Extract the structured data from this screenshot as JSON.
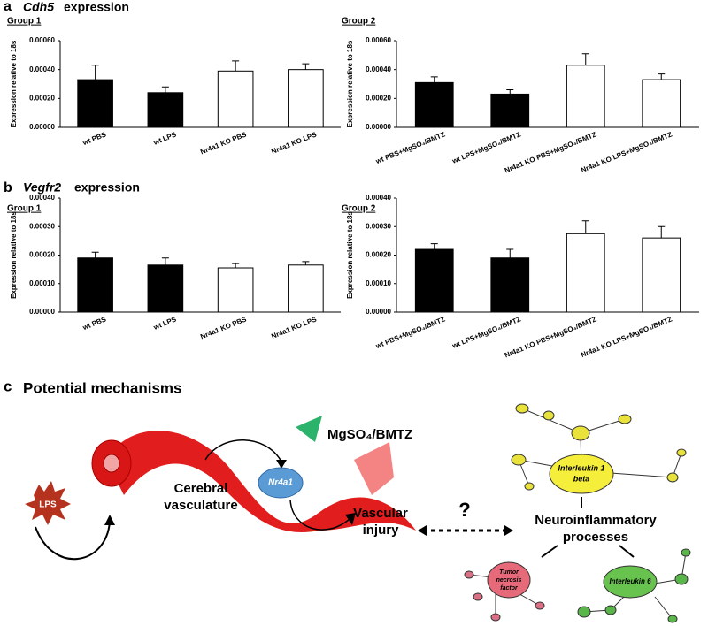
{
  "panels": [
    {
      "letter": "a",
      "gene": "Cdh5",
      "suffix": "expression"
    },
    {
      "letter": "b",
      "gene": "Vegfr2",
      "suffix": "expression"
    },
    {
      "letter": "c",
      "title": "Potential mechanisms"
    }
  ],
  "chart_data": [
    {
      "type": "bar",
      "subtitle": "Group 1",
      "ylabel": "Expression relative to 18s",
      "categories": [
        "wt PBS",
        "wt LPS",
        "Nr4a1 KO PBS",
        "Nr4a1 KO LPS"
      ],
      "values": [
        0.00033,
        0.00024,
        0.00039,
        0.0004
      ],
      "errors": [
        0.0001,
        4e-05,
        7e-05,
        4e-05
      ],
      "colors": [
        "#000000",
        "#000000",
        "#ffffff",
        "#ffffff"
      ],
      "ylim": [
        0,
        0.0006
      ],
      "yticks": [
        {
          "value": 0,
          "label": "0.00000"
        },
        {
          "value": 0.0002,
          "label": "0.00020"
        },
        {
          "value": 0.0004,
          "label": "0.00040"
        },
        {
          "value": 0.0006,
          "label": "0.00060"
        }
      ]
    },
    {
      "type": "bar",
      "subtitle": "Group 2",
      "ylabel": "Expression relative to 18s",
      "categories": [
        "wt PBS+MgSO₄/BMTZ",
        "wt LPS+MgSO₄/BMTZ",
        "Nr4a1 KO PBS+MgSO₄/BMTZ",
        "Nr4a1 KO LPS+MgSO₄/BMTZ"
      ],
      "values": [
        0.00031,
        0.00023,
        0.00043,
        0.00033
      ],
      "errors": [
        4e-05,
        3e-05,
        8e-05,
        4e-05
      ],
      "colors": [
        "#000000",
        "#000000",
        "#ffffff",
        "#ffffff"
      ],
      "ylim": [
        0,
        0.0006
      ],
      "yticks": [
        {
          "value": 0,
          "label": "0.00000"
        },
        {
          "value": 0.0002,
          "label": "0.00020"
        },
        {
          "value": 0.0004,
          "label": "0.00040"
        },
        {
          "value": 0.0006,
          "label": "0.00060"
        }
      ]
    },
    {
      "type": "bar",
      "subtitle": "Group 1",
      "ylabel": "Expression relative to 18s",
      "categories": [
        "wt PBS",
        "wt LPS",
        "Nr4a1 KO PBS",
        "Nr4a1 KO LPS"
      ],
      "values": [
        0.00019,
        0.000165,
        0.000155,
        0.000165
      ],
      "errors": [
        2e-05,
        2.5e-05,
        1.5e-05,
        1.2e-05
      ],
      "colors": [
        "#000000",
        "#000000",
        "#ffffff",
        "#ffffff"
      ],
      "ylim": [
        0,
        0.0004
      ],
      "yticks": [
        {
          "value": 0,
          "label": "0.00000"
        },
        {
          "value": 0.0001,
          "label": "0.00010"
        },
        {
          "value": 0.0002,
          "label": "0.00020"
        },
        {
          "value": 0.0003,
          "label": "0.00030"
        },
        {
          "value": 0.0004,
          "label": "0.00040"
        }
      ]
    },
    {
      "type": "bar",
      "subtitle": "Group 2",
      "ylabel": "Expression relative to 18s",
      "categories": [
        "wt PBS+MgSO₄/BMTZ",
        "wt LPS+MgSO₄/BMTZ",
        "Nr4a1 KO PBS+MgSO₄/BMTZ",
        "Nr4a1 KO LPS+MgSO₄/BMTZ"
      ],
      "values": [
        0.00022,
        0.00019,
        0.000275,
        0.00026
      ],
      "errors": [
        2e-05,
        3e-05,
        4.5e-05,
        4e-05
      ],
      "colors": [
        "#000000",
        "#000000",
        "#ffffff",
        "#ffffff"
      ],
      "ylim": [
        0,
        0.0004
      ],
      "yticks": [
        {
          "value": 0,
          "label": "0.00000"
        },
        {
          "value": 0.0001,
          "label": "0.00010"
        },
        {
          "value": 0.0002,
          "label": "0.00020"
        },
        {
          "value": 0.0003,
          "label": "0.00030"
        },
        {
          "value": 0.0004,
          "label": "0.00040"
        }
      ]
    }
  ],
  "diagram": {
    "lps": "LPS",
    "vasculature": [
      "Cerebral",
      "vasculature"
    ],
    "nr4a1": "Nr4a1",
    "drug": "MgSO₄/BMTZ",
    "injury": [
      "Vascular",
      "injury"
    ],
    "question": "?",
    "neuro": [
      "Neuroinflammatory",
      "processes"
    ],
    "il1": [
      "Interleukin 1",
      "beta"
    ],
    "tnf": [
      "Tumor",
      "necrosis",
      "factor"
    ],
    "il6": "Interleukin 6"
  }
}
